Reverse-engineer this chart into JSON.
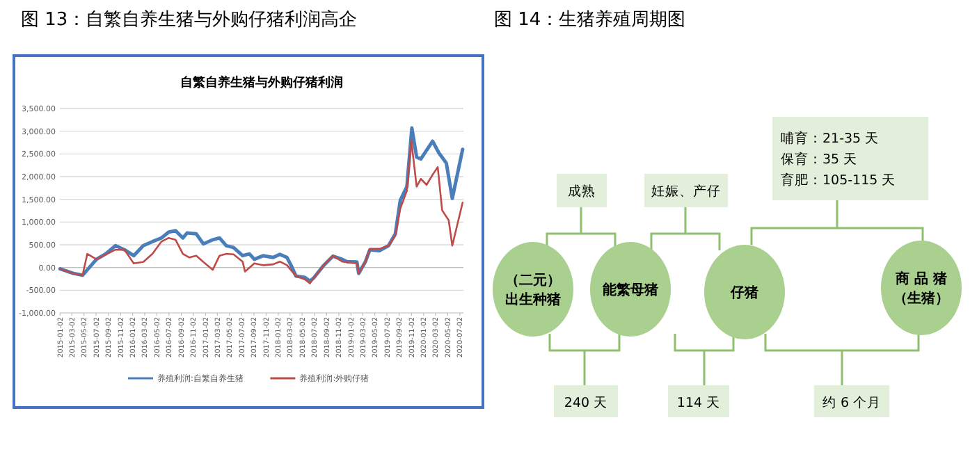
{
  "chart_data": [
    {
      "type": "line",
      "title": "自繁自养生猪与外购仔猪利润",
      "annotations": [
        "图 13：自繁自养生猪与外购仔猪利润高企"
      ],
      "xlim": [
        "2015-01-01",
        "2020-07-20"
      ],
      "xticks": [
        {
          "value": "2015-01-02",
          "label": "2015-01-02"
        },
        {
          "value": "2015-03-02",
          "label": "2015-03-02"
        },
        {
          "value": "2015-05-02",
          "label": "2015-05-02"
        },
        {
          "value": "2015-07-02",
          "label": "2015-07-02"
        },
        {
          "value": "2015-09-02",
          "label": "2015-09-02"
        },
        {
          "value": "2015-11-02",
          "label": "2015-11-02"
        },
        {
          "value": "2016-01-02",
          "label": "2016-01-02"
        },
        {
          "value": "2016-03-02",
          "label": "2016-03-02"
        },
        {
          "value": "2016-05-02",
          "label": "2016-05-02"
        },
        {
          "value": "2016-07-02",
          "label": "2016-07-02"
        },
        {
          "value": "2016-09-02",
          "label": "2016-09-02"
        },
        {
          "value": "2016-11-02",
          "label": "2016-11-02"
        },
        {
          "value": "2017-01-02",
          "label": "2017-01-02"
        },
        {
          "value": "2017-03-02",
          "label": "2017-03-02"
        },
        {
          "value": "2017-05-02",
          "label": "2017-05-02"
        },
        {
          "value": "2017-07-02",
          "label": "2017-07-02"
        },
        {
          "value": "2017-09-02",
          "label": "2017-09-02"
        },
        {
          "value": "2017-11-02",
          "label": "2017-11-02"
        },
        {
          "value": "2018-01-02",
          "label": "2018-01-02"
        },
        {
          "value": "2018-03-02",
          "label": "2018-03-02"
        },
        {
          "value": "2018-05-02",
          "label": "2018-05-02"
        },
        {
          "value": "2018-07-02",
          "label": "2018-07-02"
        },
        {
          "value": "2018-09-02",
          "label": "2018-09-02"
        },
        {
          "value": "2018-11-02",
          "label": "2018-11-02"
        },
        {
          "value": "2019-01-02",
          "label": "2019-01-02"
        },
        {
          "value": "2019-03-02",
          "label": "2019-03-02"
        },
        {
          "value": "2019-05-02",
          "label": "2019-05-02"
        },
        {
          "value": "2019-07-02",
          "label": "2019-07-02"
        },
        {
          "value": "2019-09-02",
          "label": "2019-09-02"
        },
        {
          "value": "2019-11-02",
          "label": "2019-11-02"
        },
        {
          "value": "2020-01-02",
          "label": "2020-01-02"
        },
        {
          "value": "2020-03-02",
          "label": "2020-03-02"
        },
        {
          "value": "2020-05-02",
          "label": "2020-05-02"
        },
        {
          "value": "2020-07-02",
          "label": "2020-07-02"
        }
      ],
      "ylim": [
        -1000,
        3500
      ],
      "yticks": [
        {
          "value": -1000,
          "label": "-1,000.00"
        },
        {
          "value": -500,
          "label": "-500.00"
        },
        {
          "value": 0,
          "label": "0.00"
        },
        {
          "value": 500,
          "label": "500.00"
        },
        {
          "value": 1000,
          "label": "1,000.00"
        },
        {
          "value": 1500,
          "label": "1,500.00"
        },
        {
          "value": 2000,
          "label": "2,000.00"
        },
        {
          "value": 2500,
          "label": "2,500.00"
        },
        {
          "value": 3000,
          "label": "3,000.00"
        },
        {
          "value": 3500,
          "label": "3,500.00"
        }
      ],
      "grid": "y",
      "legend": "bottom",
      "line_style": "solid",
      "series": [
        {
          "name": "养殖利润:自繁自养生猪",
          "color": "#4a7ebb",
          "x": [
            "2015-01-02",
            "2015-03-10",
            "2015-04-25",
            "2015-07-04",
            "2015-08-19",
            "2015-10-07",
            "2015-11-22",
            "2016-01-07",
            "2016-02-24",
            "2016-04-10",
            "2016-05-25",
            "2016-07-01",
            "2016-08-04",
            "2016-09-10",
            "2016-10-01",
            "2016-11-16",
            "2016-12-22",
            "2017-02-07",
            "2017-03-13",
            "2017-04-16",
            "2017-05-22",
            "2017-07-07",
            "2017-08-10",
            "2017-09-04",
            "2017-10-19",
            "2017-12-07",
            "2018-01-10",
            "2018-02-15",
            "2018-03-07",
            "2018-04-01",
            "2018-05-16",
            "2018-06-10",
            "2018-07-01",
            "2018-08-19",
            "2018-10-04",
            "2018-11-19",
            "2018-12-13",
            "2019-02-01",
            "2019-02-10",
            "2019-03-16",
            "2019-04-07",
            "2019-05-25",
            "2019-07-10",
            "2019-08-13",
            "2019-09-07",
            "2019-10-10",
            "2019-11-04",
            "2019-11-28",
            "2019-12-19",
            "2020-02-16",
            "2020-03-19",
            "2020-04-25",
            "2020-05-25",
            "2020-07-16"
          ],
          "values": [
            -30,
            -130,
            -170,
            180,
            300,
            480,
            390,
            260,
            480,
            570,
            650,
            780,
            810,
            650,
            760,
            740,
            520,
            610,
            650,
            480,
            440,
            260,
            300,
            180,
            260,
            220,
            290,
            220,
            50,
            -190,
            -220,
            -300,
            -220,
            50,
            250,
            180,
            130,
            120,
            -130,
            130,
            390,
            370,
            480,
            740,
            1480,
            1780,
            3070,
            2430,
            2390,
            2780,
            2520,
            2300,
            1520,
            2600
          ]
        },
        {
          "name": "养殖利润:外购仔猪",
          "color": "#be4b48",
          "x": [
            "2015-01-02",
            "2015-03-10",
            "2015-04-25",
            "2015-05-19",
            "2015-07-04",
            "2015-10-07",
            "2015-11-22",
            "2016-01-07",
            "2016-02-24",
            "2016-04-10",
            "2016-05-25",
            "2016-07-01",
            "2016-08-04",
            "2016-09-10",
            "2016-10-13",
            "2016-11-16",
            "2016-12-22",
            "2017-02-07",
            "2017-03-13",
            "2017-04-16",
            "2017-05-22",
            "2017-07-07",
            "2017-07-19",
            "2017-09-04",
            "2017-10-19",
            "2017-12-07",
            "2018-01-10",
            "2018-02-15",
            "2018-04-01",
            "2018-05-16",
            "2018-06-10",
            "2018-07-01",
            "2018-08-19",
            "2018-10-04",
            "2018-11-19",
            "2019-02-01",
            "2019-02-10",
            "2019-03-16",
            "2019-04-07",
            "2019-05-25",
            "2019-07-10",
            "2019-08-13",
            "2019-09-07",
            "2019-10-10",
            "2019-11-01",
            "2019-11-28",
            "2019-12-19",
            "2020-01-17",
            "2020-02-16",
            "2020-03-13",
            "2020-04-04",
            "2020-05-07",
            "2020-05-25",
            "2020-07-16"
          ],
          "values": [
            -30,
            -130,
            -170,
            300,
            180,
            390,
            390,
            90,
            120,
            300,
            570,
            650,
            610,
            300,
            220,
            260,
            120,
            -50,
            260,
            300,
            290,
            130,
            -90,
            90,
            50,
            70,
            130,
            50,
            -190,
            -260,
            -350,
            -220,
            50,
            260,
            130,
            90,
            -130,
            130,
            410,
            410,
            480,
            700,
            1300,
            1690,
            2800,
            1780,
            1950,
            1820,
            2040,
            2210,
            1260,
            1040,
            480,
            1430
          ]
        }
      ]
    },
    {
      "type": "other",
      "title": "图 14：生猪养殖周期图",
      "annotations": [
        "（二元）",
        "出生种猪",
        "能繁母猪",
        "仔猪",
        "商 品 猪",
        "（生猪）",
        "成熟",
        "妊娠、产仔",
        "哺育：21-35 天",
        "保育：35 天",
        "育肥：105-115 天",
        "240 天",
        "114 天",
        "约 6 个月"
      ]
    }
  ]
}
